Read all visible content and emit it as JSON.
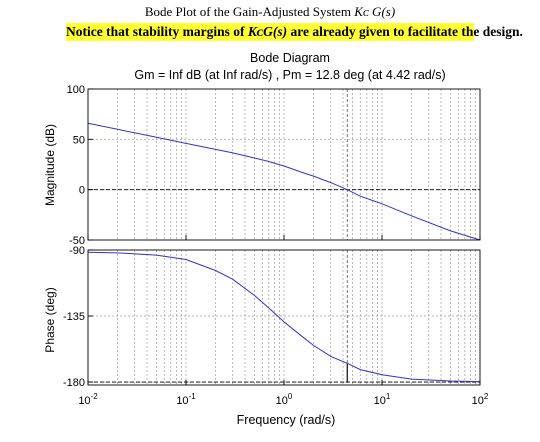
{
  "page": {
    "title_prefix": "Bode Plot of the Gain-Adjusted System ",
    "title_math": "Kᴄ G(s)",
    "note_prefix": "Notice that stability margins of ",
    "note_math": "KᴄG(s)",
    "note_suffix": " are already given to facilitate the design."
  },
  "chart_data": {
    "type": "line",
    "title": "Bode Diagram",
    "subtitle": "Gm = Inf dB (at Inf rad/s) ,  Pm = 12.8 deg (at 4.42 rad/s)",
    "xlabel": "Frequency  (rad/s)",
    "x_scale": "log",
    "xlim": [
      0.01,
      100
    ],
    "x_tick_labels": [
      "10-2",
      "10-1",
      "100",
      "101",
      "102"
    ],
    "x_tick_values": [
      0.01,
      0.1,
      1,
      10,
      100
    ],
    "grid": true,
    "line_color": "#3333cc",
    "margin_marker_color": "#000000",
    "crossover_frequency": 4.42,
    "phase_margin_deg": 12.8,
    "gain_margin": "Inf",
    "panels": [
      {
        "name": "magnitude",
        "ylabel": "Magnitude (dB)",
        "ylim": [
          -50,
          100
        ],
        "y_ticks": [
          -50,
          0,
          50,
          100
        ],
        "reference_line": 0,
        "series": {
          "x": [
            0.01,
            0.02,
            0.05,
            0.1,
            0.2,
            0.3,
            0.5,
            0.7,
            1,
            1.5,
            2,
            3,
            4.42,
            6,
            10,
            20,
            50,
            100
          ],
          "y": [
            66,
            60,
            52,
            46,
            40,
            36.5,
            31.5,
            28,
            23.5,
            17.5,
            13.5,
            7,
            0,
            -6.5,
            -14,
            -26,
            -41,
            -53
          ]
        }
      },
      {
        "name": "phase",
        "ylabel": "Phase (deg)",
        "ylim": [
          -182,
          -90
        ],
        "y_ticks": [
          -180,
          -135,
          -90
        ],
        "reference_line": -180,
        "series": {
          "x": [
            0.01,
            0.02,
            0.05,
            0.1,
            0.2,
            0.3,
            0.5,
            0.7,
            1,
            1.5,
            2,
            3,
            4.42,
            6,
            10,
            20,
            50,
            100
          ],
          "y": [
            -91.5,
            -92,
            -93.5,
            -96.5,
            -104,
            -110,
            -121,
            -129.5,
            -139,
            -148.5,
            -155,
            -162.5,
            -167.2,
            -171.5,
            -175,
            -178,
            -179.3,
            -179.7
          ]
        }
      }
    ]
  }
}
